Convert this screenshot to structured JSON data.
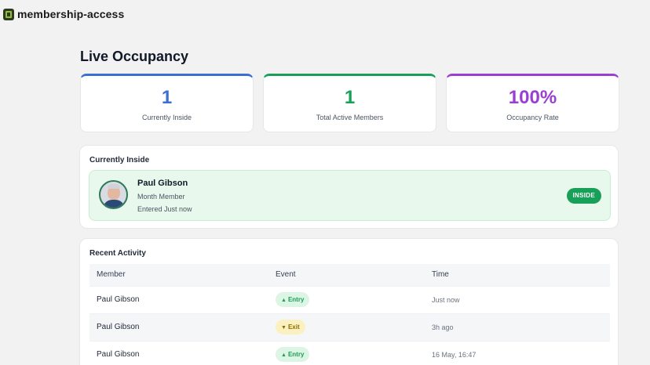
{
  "app": {
    "title": "membership-access",
    "icon": "gym-badge-icon"
  },
  "page": {
    "title": "Live Occupancy"
  },
  "stats": [
    {
      "value": "1",
      "label": "Currently Inside",
      "color": "#3b6fd4"
    },
    {
      "value": "1",
      "label": "Total Active Members",
      "color": "#18a058"
    },
    {
      "value": "100%",
      "label": "Occupancy Rate",
      "color": "#9b3fd4"
    }
  ],
  "currently_inside": {
    "title": "Currently Inside",
    "member": {
      "name": "Paul Gibson",
      "plan": "Month Member",
      "entered": "Entered Just now",
      "status": "INSIDE"
    }
  },
  "recent_activity": {
    "title": "Recent Activity",
    "columns": [
      "Member",
      "Event",
      "Time"
    ],
    "rows": [
      {
        "member": "Paul Gibson",
        "event": "Entry",
        "event_type": "entry",
        "time": "Just now"
      },
      {
        "member": "Paul Gibson",
        "event": "Exit",
        "event_type": "exit",
        "time": "3h ago"
      },
      {
        "member": "Paul Gibson",
        "event": "Entry",
        "event_type": "entry",
        "time": "16 May, 16:47"
      }
    ]
  }
}
